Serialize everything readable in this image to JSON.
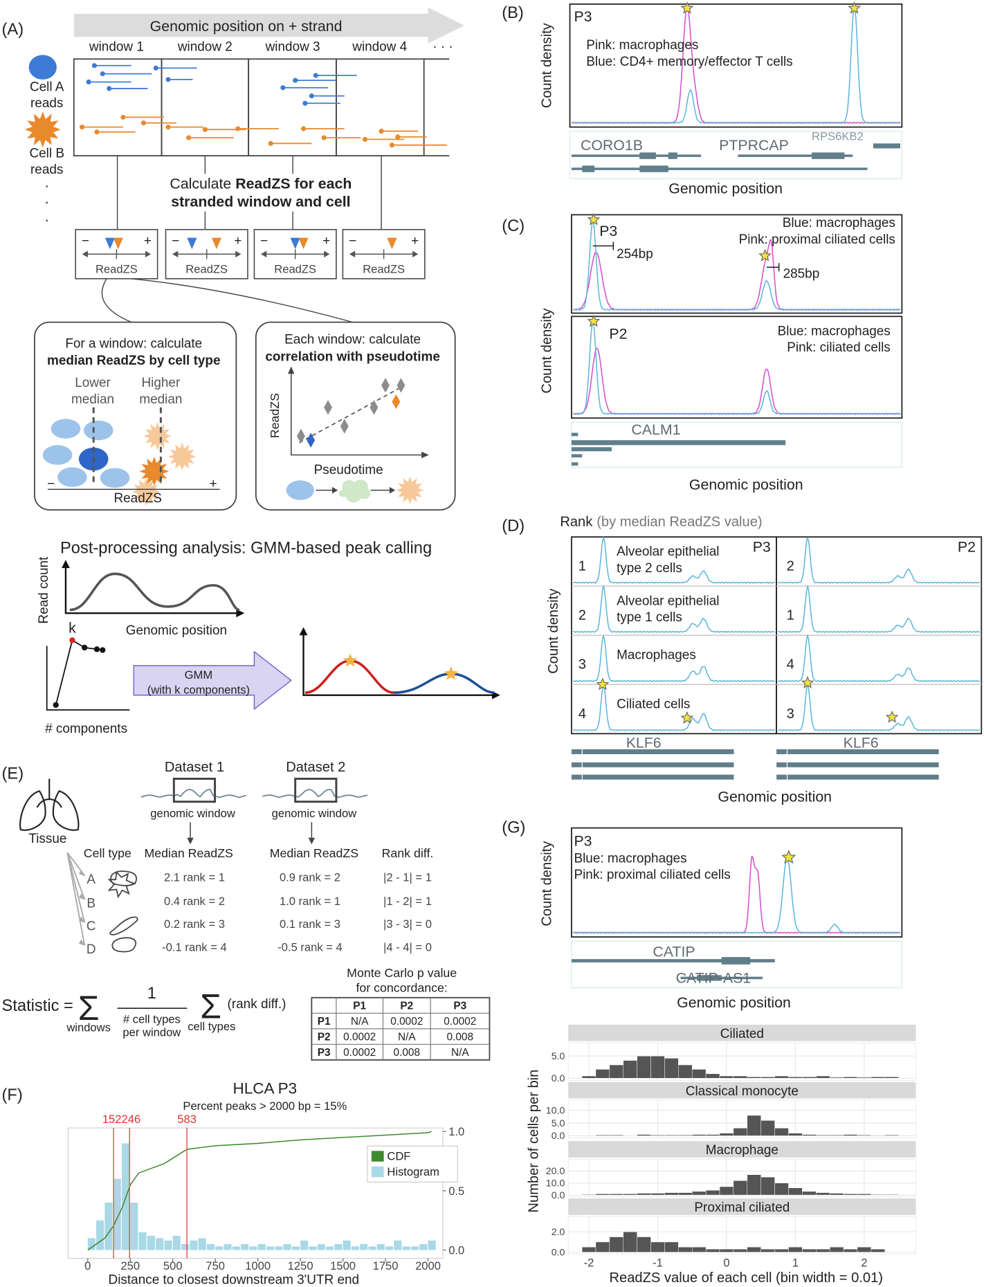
{
  "panel_a": {
    "label": "(A)",
    "arrow_title": "Genomic position on + strand",
    "windows": [
      "window 1",
      "window 2",
      "window 3",
      "window 4",
      "· · ·"
    ],
    "cell_a": [
      "Cell A",
      "reads"
    ],
    "cell_b": [
      "Cell B",
      "reads"
    ],
    "dots": [
      "·",
      "·",
      "·"
    ],
    "calc_line1": {
      "plain": "Calculate",
      "bold": "ReadZS for each"
    },
    "calc_line2": "stranded window and cell",
    "readzs_boxes": [
      {
        "minus": "−",
        "plus": "+",
        "axis": "ReadZS"
      },
      {
        "minus": "−",
        "plus": "+",
        "axis": "ReadZS"
      },
      {
        "minus": "−",
        "plus": "+",
        "axis": "ReadZS"
      },
      {
        "minus": "−",
        "plus": "+",
        "axis": "ReadZS"
      }
    ],
    "median_box": {
      "line1": "For a window: calculate",
      "line2": "median ReadZS by cell type",
      "lower": [
        "Lower",
        "median"
      ],
      "higher": [
        "Higher",
        "median"
      ],
      "minus": "−",
      "axis": "ReadZS",
      "plus": "+"
    },
    "corr_box": {
      "line1": "Each window: calculate",
      "line2": "correlation with pseudotime",
      "y_label": "ReadZS",
      "x_label": "Pseudotime"
    },
    "post_title": "Post-processing analysis: GMM-based peak calling",
    "read_count": "Read count",
    "genomic_position": "Genomic position",
    "k": "k",
    "components": "# components",
    "gmm": [
      "GMM",
      "(with k components)"
    ]
  },
  "panel_b": {
    "label": "(B)",
    "sample": "P3",
    "legend": [
      "Pink: macrophages",
      "Blue: CD4+ memory/effector T cells"
    ],
    "y_label": "Count density",
    "genes": [
      "CORO1B",
      "PTPRCAP",
      "RPS6KB2"
    ],
    "x_label": "Genomic position"
  },
  "panel_c": {
    "label": "(C)",
    "top": {
      "sample": "P3",
      "legend": [
        "Blue: macrophages",
        "Pink: proximal ciliated cells"
      ],
      "annotations": [
        "254bp",
        "285bp"
      ]
    },
    "bottom": {
      "sample": "P2",
      "legend": [
        "Blue: macrophages",
        "Pink: ciliated cells"
      ]
    },
    "y_label": "Count density",
    "gene": "CALM1",
    "x_label": "Genomic position"
  },
  "panel_d": {
    "label": "(D)",
    "title": "Rank",
    "subtitle": "(by median ReadZS value)",
    "samples": [
      "P3",
      "P2"
    ],
    "rows": [
      {
        "rank_p3": "1",
        "name": [
          "Alveolar epithelial",
          "type 2 cells"
        ],
        "rank_p2": "2"
      },
      {
        "rank_p3": "2",
        "name": [
          "Alveolar epithelial",
          "type 1 cells"
        ],
        "rank_p2": "1"
      },
      {
        "rank_p3": "3",
        "name": [
          "Macrophages"
        ],
        "rank_p2": "4"
      },
      {
        "rank_p3": "4",
        "name": [
          "Ciliated cells"
        ],
        "rank_p2": "3"
      }
    ],
    "y_label": "Count density",
    "genes": [
      "KLF6",
      "KLF6"
    ],
    "x_label": "Genomic position"
  },
  "panel_e": {
    "label": "(E)",
    "tissue": "Tissue",
    "datasets": [
      {
        "name": "Dataset 1",
        "window": "genomic window"
      },
      {
        "name": "Dataset 2",
        "window": "genomic window"
      }
    ],
    "headers": [
      "Cell type",
      "Median ReadZS",
      "Median ReadZS",
      "Rank diff."
    ],
    "rows": [
      {
        "letter": "A",
        "d1": "2.1  rank = 1",
        "d2": "0.9  rank = 2",
        "diff": "|2 - 1| = 1"
      },
      {
        "letter": "B",
        "d1": "0.4  rank = 2",
        "d2": "1.0  rank = 1",
        "diff": "|1 - 2| = 1"
      },
      {
        "letter": "C",
        "d1": "0.2  rank = 3",
        "d2": "0.1  rank = 3",
        "diff": "|3 - 3| = 0"
      },
      {
        "letter": "D",
        "d1": "-0.1  rank = 4",
        "d2": "-0.5  rank = 4",
        "diff": "|4 - 4| = 0"
      }
    ],
    "statistic": {
      "lhs": "Statistic =",
      "sigma1": "Σ",
      "sub1": "windows",
      "numerator": "1",
      "denominator": [
        "# cell types",
        "per window"
      ],
      "sigma2": "Σ",
      "sub2": "cell types",
      "term": "(rank diff.)"
    },
    "table": {
      "title": [
        "Monte Carlo p value",
        "for concordance:"
      ],
      "header": [
        "P1",
        "P2",
        "P3"
      ],
      "rows": [
        [
          "P1",
          "N/A",
          "0.0002",
          "0.0002"
        ],
        [
          "P2",
          "0.0002",
          "N/A",
          "0.008"
        ],
        [
          "P3",
          "0.0002",
          "0.008",
          "N/A"
        ]
      ]
    }
  },
  "panel_f": {
    "type": "histogram",
    "label": "(F)",
    "title": "HLCA P3",
    "subtitle": "Percent peaks > 2000 bp = 15%",
    "bins": [
      0,
      50,
      100,
      150,
      200,
      250,
      300,
      350,
      400,
      450,
      500,
      550,
      600,
      650,
      700,
      750,
      800,
      850,
      900,
      950,
      1000,
      1050,
      1100,
      1150,
      1200,
      1250,
      1300,
      1350,
      1400,
      1450,
      1500,
      1550,
      1600,
      1650,
      1700,
      1750,
      1800,
      1850,
      1900,
      1950,
      2000,
      2050
    ],
    "values": [
      0.1,
      0.25,
      0.4,
      0.6,
      0.9,
      0.4,
      0.15,
      0.12,
      0.1,
      0.08,
      0.12,
      0.05,
      0.08,
      0.1,
      0.05,
      0.03,
      0.05,
      0.03,
      0.05,
      0.03,
      0.05,
      0.03,
      0.03,
      0.05,
      0.03,
      0.08,
      0.03,
      0.05,
      0.03,
      0.05,
      0.08,
      0.03,
      0.05,
      0.03,
      0.05,
      0.03,
      0.08,
      0.03,
      0.03,
      0.05,
      0.08
    ],
    "cdf": {
      "x": [
        0,
        100,
        150,
        200,
        250,
        300,
        450,
        583,
        750,
        1000,
        1250,
        1500,
        1750,
        2000,
        2020
      ],
      "values": [
        0,
        0.1,
        0.2,
        0.35,
        0.55,
        0.65,
        0.73,
        0.85,
        0.88,
        0.9,
        0.93,
        0.95,
        0.97,
        0.99,
        1.0
      ]
    },
    "vlines": [
      152,
      246,
      583
    ],
    "series": [
      {
        "name": "CDF",
        "color": "#3f8a2e"
      },
      {
        "name": "Histogram",
        "color": "#a9d8e6"
      }
    ],
    "xlim": [
      -115,
      2087
    ],
    "ylim": [
      -0.07,
      1.03
    ],
    "xticks": [
      0,
      250,
      500,
      750,
      1000,
      1250,
      1500,
      1750,
      2000
    ],
    "yticks": [
      {
        "value": 0,
        "label": "0.0"
      },
      {
        "value": 0.5,
        "label": "0.5"
      },
      {
        "value": 1,
        "label": "1.0"
      }
    ],
    "x_label": "Distance to closest downstream 3'UTR end"
  },
  "panel_g": {
    "type": "histogram",
    "label": "(G)",
    "sample": "P3",
    "legend": [
      "Blue: macrophages",
      "Pink: proximal ciliated cells"
    ],
    "y_label": "Count density",
    "genes": [
      "CATIP",
      "CATIP-AS1"
    ],
    "x_label": "Genomic position",
    "bins": [
      -2.3,
      -2.1,
      -1.9,
      -1.7,
      -1.5,
      -1.3,
      -1.1,
      -0.9,
      -0.7,
      -0.5,
      -0.3,
      -0.1,
      0.1,
      0.3,
      0.5,
      0.7,
      0.9,
      1.1,
      1.3,
      1.5,
      1.7,
      1.9,
      2.1,
      2.3,
      2.5,
      2.7
    ],
    "xlim": [
      -2.3,
      2.75
    ],
    "xticks": [
      -2,
      -1,
      0,
      1,
      2
    ],
    "grid": true,
    "bar_color": "#555555",
    "facets": [
      {
        "name": "Ciliated",
        "ylim": [
          -0.5,
          8
        ],
        "yticks": [
          {
            "value": 0,
            "label": "0.0"
          },
          {
            "value": 5,
            "label": "5.0"
          }
        ],
        "values": [
          0,
          0.5,
          2,
          3,
          4,
          5,
          5,
          4.5,
          3,
          2,
          1,
          0.5,
          0.5,
          0.3,
          0.3,
          0.5,
          0.3,
          0.3,
          0.5,
          0.2,
          0.3,
          0.2,
          0.3,
          0.3,
          0
        ]
      },
      {
        "name": "Classical monocyte",
        "ylim": [
          -0.8,
          14
        ],
        "yticks": [
          {
            "value": 0,
            "label": "0.0"
          },
          {
            "value": 5,
            "label": "5.0"
          },
          {
            "value": 10,
            "label": "10.0"
          }
        ],
        "values": [
          0,
          0,
          0.3,
          0.3,
          0,
          0.5,
          0.3,
          0.3,
          0.3,
          0.5,
          0.5,
          1,
          3,
          8,
          6,
          3,
          1,
          0.5,
          0.3,
          0.3,
          0.5,
          0.3,
          0.2,
          0.3,
          0
        ]
      },
      {
        "name": "Macrophage",
        "ylim": [
          -1.5,
          30
        ],
        "yticks": [
          {
            "value": 0,
            "label": "0.0"
          },
          {
            "value": 10,
            "label": "10.0"
          },
          {
            "value": 20,
            "label": "20.0"
          }
        ],
        "values": [
          0,
          0.5,
          1,
          1,
          1,
          1.5,
          1.5,
          2,
          2,
          3,
          4,
          7,
          12,
          17,
          15,
          10,
          6,
          3,
          2,
          1.5,
          1,
          1,
          0.5,
          0.5,
          0
        ]
      },
      {
        "name": "Proximal ciliated",
        "ylim": [
          -0.2,
          3.5
        ],
        "yticks": [
          {
            "value": 0,
            "label": "0.0"
          },
          {
            "value": 2,
            "label": "2.0"
          }
        ],
        "values": [
          0,
          0.5,
          1,
          1.5,
          2,
          1.5,
          1,
          1,
          0.5,
          0.5,
          0.3,
          0.3,
          0.3,
          0.5,
          0.3,
          0.3,
          0.5,
          0.3,
          0.3,
          0.5,
          0.3,
          0.5,
          0.3,
          0,
          0
        ]
      }
    ],
    "hist_y_label": "Number of cells per bin",
    "hist_x_label": "ReadZS value of each cell (bin width = 0.01)"
  }
}
